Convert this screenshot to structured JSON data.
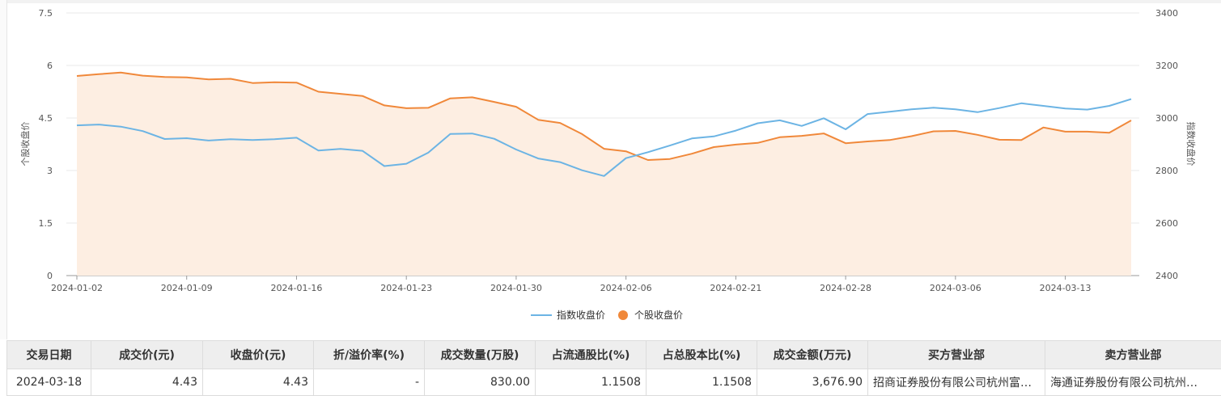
{
  "chart_data": {
    "type": "line",
    "x": [
      "2024-01-02",
      "2024-01-03",
      "2024-01-04",
      "2024-01-05",
      "2024-01-08",
      "2024-01-09",
      "2024-01-10",
      "2024-01-11",
      "2024-01-12",
      "2024-01-15",
      "2024-01-16",
      "2024-01-17",
      "2024-01-18",
      "2024-01-19",
      "2024-01-22",
      "2024-01-23",
      "2024-01-24",
      "2024-01-25",
      "2024-01-26",
      "2024-01-29",
      "2024-01-30",
      "2024-01-31",
      "2024-02-01",
      "2024-02-02",
      "2024-02-05",
      "2024-02-06",
      "2024-02-07",
      "2024-02-08",
      "2024-02-19",
      "2024-02-20",
      "2024-02-21",
      "2024-02-22",
      "2024-02-23",
      "2024-02-26",
      "2024-02-27",
      "2024-02-28",
      "2024-02-29",
      "2024-03-01",
      "2024-03-04",
      "2024-03-05",
      "2024-03-06",
      "2024-03-07",
      "2024-03-08",
      "2024-03-11",
      "2024-03-12",
      "2024-03-13",
      "2024-03-14",
      "2024-03-15",
      "2024-03-18"
    ],
    "x_tick_labels": [
      "2024-01-02",
      "2024-01-09",
      "2024-01-16",
      "2024-01-23",
      "2024-01-30",
      "2024-02-06",
      "2024-02-21",
      "2024-02-28",
      "2024-03-06",
      "2024-03-13"
    ],
    "y_left": {
      "label": "个股收盘价",
      "ticks": [
        "0",
        "1.5",
        "3",
        "4.5",
        "6",
        "7.5"
      ],
      "range": [
        0,
        7.5
      ]
    },
    "y_right": {
      "label": "指数收盘价",
      "ticks": [
        "2400",
        "2600",
        "2800",
        "3000",
        "3200",
        "3400"
      ],
      "range": [
        2400,
        3400
      ]
    },
    "series": [
      {
        "name": "指数收盘价",
        "axis": "right",
        "color": "#6cb4e4",
        "values": [
          2972,
          2975,
          2967,
          2950,
          2920,
          2923,
          2914,
          2919,
          2916,
          2919,
          2925,
          2876,
          2882,
          2875,
          2817,
          2826,
          2868,
          2939,
          2941,
          2921,
          2880,
          2846,
          2832,
          2801,
          2779,
          2847,
          2870,
          2895,
          2922,
          2930,
          2952,
          2980,
          2991,
          2970,
          2999,
          2957,
          3015,
          3024,
          3033,
          3039,
          3033,
          3022,
          3038,
          3056,
          3046,
          3036,
          3032,
          3046,
          3072
        ]
      },
      {
        "name": "个股收盘价",
        "axis": "left",
        "color": "#f0883a",
        "fill": "#fdeee2",
        "values": [
          5.7,
          5.75,
          5.8,
          5.71,
          5.67,
          5.66,
          5.6,
          5.62,
          5.5,
          5.52,
          5.51,
          5.25,
          5.19,
          5.13,
          4.86,
          4.78,
          4.79,
          5.06,
          5.09,
          4.96,
          4.82,
          4.45,
          4.36,
          4.04,
          3.62,
          3.55,
          3.3,
          3.33,
          3.48,
          3.67,
          3.74,
          3.79,
          3.95,
          3.99,
          4.06,
          3.78,
          3.83,
          3.87,
          3.98,
          4.12,
          4.13,
          4.02,
          3.88,
          3.87,
          4.23,
          4.11,
          4.11,
          4.08,
          4.43
        ]
      }
    ],
    "grid": true,
    "legend": "bottom-center"
  },
  "legend": [
    {
      "label": "指数收盘价",
      "color": "#6cb4e4"
    },
    {
      "label": "个股收盘价",
      "color": "#f0883a"
    }
  ],
  "table": {
    "headers": [
      "交易日期",
      "成交价(元)",
      "收盘价(元)",
      "折/溢价率(%)",
      "成交数量(万股)",
      "占流通股比(%)",
      "占总股本比(%)",
      "成交金额(万元)",
      "买方营业部",
      "卖方营业部"
    ],
    "rows": [
      [
        "2024-03-18",
        "4.43",
        "4.43",
        "-",
        "830.00",
        "1.1508",
        "1.1508",
        "3,676.90",
        "招商证券股份有限公司杭州富…",
        "海通证券股份有限公司杭州…"
      ]
    ]
  }
}
